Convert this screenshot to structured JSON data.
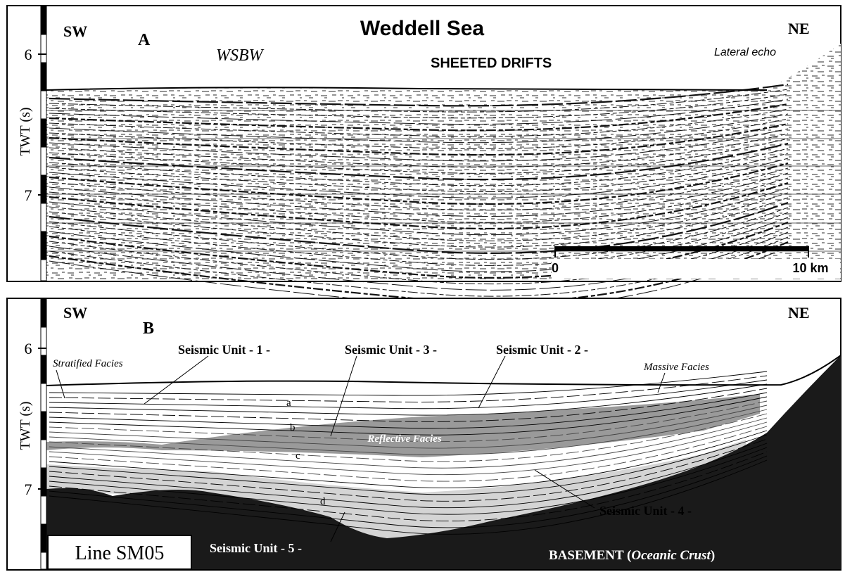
{
  "panel_a": {
    "label": "A",
    "title": "Weddell Sea",
    "left_end": "SW",
    "right_end": "NE",
    "water_mass": "WSBW",
    "drift_label": "SHEETED DRIFTS",
    "echo_label": "Lateral echo",
    "axis_label": "TWT (s)",
    "ticks": [
      6,
      7
    ],
    "scale_bar": {
      "start": "0",
      "end": "10 km"
    }
  },
  "panel_b": {
    "label": "B",
    "left_end": "SW",
    "right_end": "NE",
    "axis_label": "TWT (s)",
    "ticks": [
      6,
      7
    ],
    "stratified": "Stratified Facies",
    "unit1": "Seismic Unit - 1 -",
    "unit3": "Seismic Unit - 3 -",
    "unit2": "Seismic Unit - 2 -",
    "massive": "Massive Facies",
    "horizons": [
      "a",
      "b",
      "c",
      "d"
    ],
    "reflective": "Reflective Facies",
    "unit4": "Seismic Unit - 4 -",
    "unit5": "Seismic Unit - 5 -",
    "line_name": "Line SM05",
    "basement": {
      "prefix": "BASEMENT (",
      "italic": "Oceanic Crust",
      "suffix": ")"
    }
  }
}
